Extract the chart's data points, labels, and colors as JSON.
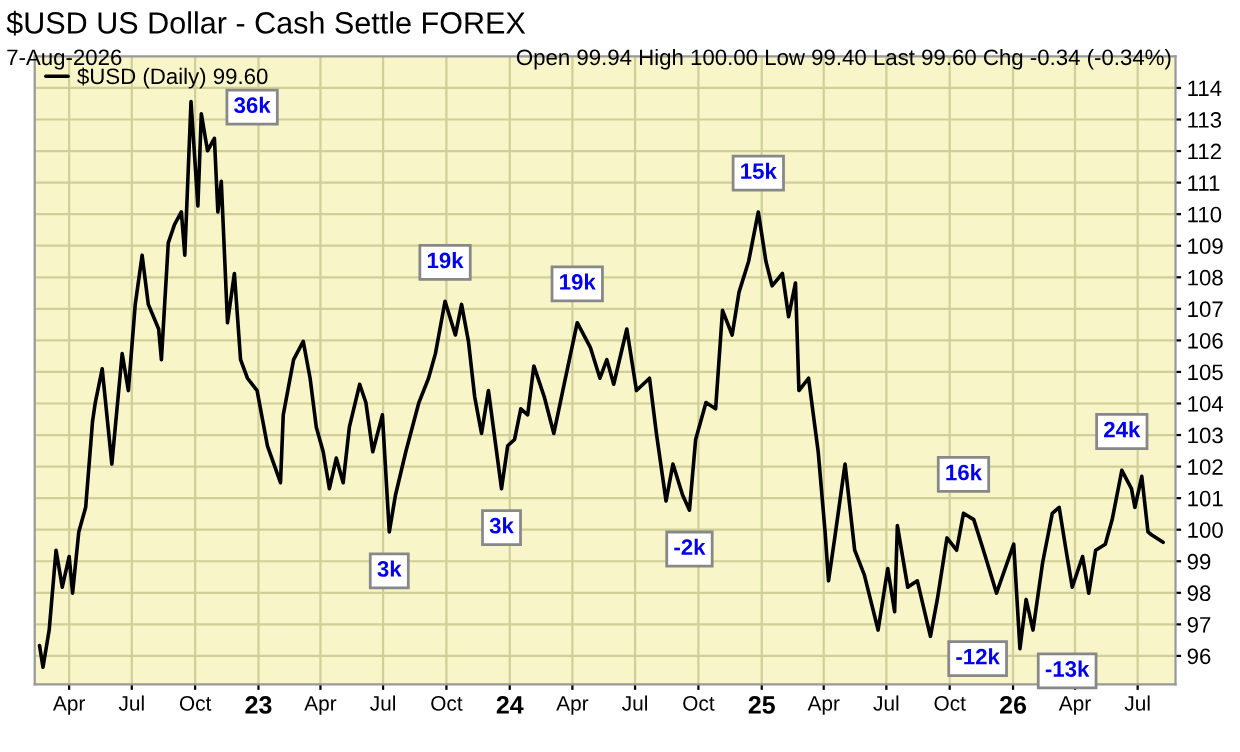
{
  "chart_data": {
    "type": "line",
    "title": "$USD US Dollar - Cash Settle FOREX",
    "subtitle": "7-Aug-2026",
    "annotations": [
      "Open 99.94 High 100.00 Low 99.40 Last 99.60 Chg -0.34 (-0.34%)",
      {
        "text": "36k",
        "x": "2022-09-25",
        "y": 113.57
      },
      {
        "text": "3k",
        "x": "2023-07-10",
        "y": 99.93
      },
      {
        "text": "19k",
        "x": "2023-09-29",
        "y": 107.24
      },
      {
        "text": "3k",
        "x": "2023-12-20",
        "y": 101.3
      },
      {
        "text": "19k",
        "x": "2024-04-08",
        "y": 106.56
      },
      {
        "text": "-2k",
        "x": "2024-09-18",
        "y": 100.62
      },
      {
        "text": "15k",
        "x": "2024-12-27",
        "y": 110.07
      },
      {
        "text": "-12k",
        "x": "2025-09-03",
        "y": 96.62
      },
      {
        "text": "16k",
        "x": "2025-10-21",
        "y": 100.52
      },
      {
        "text": "-13k",
        "x": "2026-01-11",
        "y": 96.23
      },
      {
        "text": "24k",
        "x": "2026-06-08",
        "y": 101.88
      }
    ],
    "x": [
      "2022-02-17",
      "2022-02-22",
      "2022-03-03",
      "2022-03-13",
      "2022-03-22",
      "2022-04-01",
      "2022-04-06",
      "2022-04-15",
      "2022-04-25",
      "2022-05-05",
      "2022-05-09",
      "2022-05-19",
      "2022-06-02",
      "2022-06-17",
      "2022-06-26",
      "2022-07-06",
      "2022-07-16",
      "2022-07-25",
      "2022-08-09",
      "2022-08-13",
      "2022-08-23",
      "2022-09-01",
      "2022-09-11",
      "2022-09-16",
      "2022-09-25",
      "2022-10-05",
      "2022-10-10",
      "2022-10-19",
      "2022-10-29",
      "2022-11-03",
      "2022-11-08",
      "2022-11-17",
      "2022-11-27",
      "2022-12-06",
      "2022-12-16",
      "2022-12-30",
      "2023-01-14",
      "2023-02-02",
      "2023-02-06",
      "2023-02-21",
      "2023-03-07",
      "2023-03-17",
      "2023-03-26",
      "2023-04-05",
      "2023-04-14",
      "2023-04-24",
      "2023-05-04",
      "2023-05-13",
      "2023-05-28",
      "2023-06-06",
      "2023-06-16",
      "2023-06-30",
      "2023-07-10",
      "2023-07-19",
      "2023-08-03",
      "2023-08-22",
      "2023-09-05",
      "2023-09-15",
      "2023-09-29",
      "2023-10-14",
      "2023-10-23",
      "2023-11-02",
      "2023-11-11",
      "2023-11-21",
      "2023-12-01",
      "2023-12-20",
      "2023-12-29",
      "2024-01-08",
      "2024-01-17",
      "2024-01-27",
      "2024-02-05",
      "2024-02-20",
      "2024-03-05",
      "2024-03-20",
      "2024-04-08",
      "2024-04-27",
      "2024-05-11",
      "2024-05-21",
      "2024-05-31",
      "2024-06-19",
      "2024-07-03",
      "2024-07-22",
      "2024-08-01",
      "2024-08-15",
      "2024-08-25",
      "2024-09-08",
      "2024-09-18",
      "2024-09-27",
      "2024-10-12",
      "2024-10-26",
      "2024-11-05",
      "2024-11-19",
      "2024-11-29",
      "2024-12-13",
      "2024-12-27",
      "2025-01-07",
      "2025-01-16",
      "2025-01-31",
      "2025-02-09",
      "2025-02-19",
      "2025-02-24",
      "2025-03-10",
      "2025-03-24",
      "2025-04-03",
      "2025-04-08",
      "2025-04-17",
      "2025-05-02",
      "2025-05-16",
      "2025-05-30",
      "2025-06-19",
      "2025-07-03",
      "2025-07-13",
      "2025-07-17",
      "2025-08-01",
      "2025-08-15",
      "2025-09-03",
      "2025-09-13",
      "2025-09-27",
      "2025-10-11",
      "2025-10-21",
      "2025-11-05",
      "2025-11-19",
      "2025-12-08",
      "2026-01-02",
      "2026-01-11",
      "2026-01-20",
      "2026-01-30",
      "2026-02-13",
      "2026-02-27",
      "2026-03-09",
      "2026-03-19",
      "2026-03-28",
      "2026-04-12",
      "2026-04-21",
      "2026-05-01",
      "2026-05-15",
      "2026-05-25",
      "2026-06-08",
      "2026-06-22",
      "2026-06-27",
      "2026-07-07",
      "2026-07-16",
      "2026-07-21",
      "2026-08-07"
    ],
    "series": [
      {
        "name": "$USD (Daily) 99.60",
        "color": "#000000",
        "values": [
          96.33,
          95.64,
          96.82,
          99.35,
          98.18,
          99.15,
          97.99,
          99.93,
          100.71,
          103.44,
          104.03,
          105.1,
          102.08,
          105.58,
          104.41,
          107.14,
          108.7,
          107.14,
          106.36,
          105.39,
          109.09,
          109.67,
          110.07,
          108.7,
          113.57,
          110.26,
          113.18,
          112.01,
          112.4,
          110.07,
          111.04,
          106.56,
          108.12,
          105.39,
          104.8,
          104.41,
          102.66,
          101.49,
          103.64,
          105.39,
          105.97,
          104.8,
          103.25,
          102.47,
          101.3,
          102.27,
          101.49,
          103.25,
          104.61,
          104.03,
          102.47,
          103.64,
          99.93,
          101.1,
          102.47,
          104.03,
          104.8,
          105.58,
          107.24,
          106.17,
          107.14,
          105.97,
          104.22,
          103.05,
          104.41,
          101.3,
          102.66,
          102.86,
          103.83,
          103.64,
          105.19,
          104.22,
          103.05,
          104.61,
          106.56,
          105.78,
          104.8,
          105.39,
          104.61,
          106.36,
          104.41,
          104.8,
          103.05,
          100.91,
          102.08,
          101.1,
          100.62,
          102.86,
          104.03,
          103.83,
          106.95,
          106.17,
          107.53,
          108.51,
          110.07,
          108.51,
          107.73,
          108.12,
          106.75,
          107.82,
          104.41,
          104.8,
          102.47,
          99.93,
          98.38,
          99.74,
          102.08,
          99.35,
          98.57,
          96.82,
          98.77,
          97.4,
          100.13,
          98.18,
          98.38,
          96.62,
          97.79,
          99.74,
          99.35,
          100.52,
          100.32,
          99.35,
          97.99,
          99.54,
          96.23,
          97.79,
          96.82,
          98.96,
          100.52,
          100.71,
          99.35,
          98.18,
          99.15,
          97.99,
          99.35,
          99.54,
          100.32,
          101.88,
          101.3,
          100.71,
          101.69,
          99.93,
          99.84,
          99.6
        ]
      }
    ],
    "xlim": [
      "2022-02-10",
      "2026-08-25"
    ],
    "xticks": [
      {
        "value": "2022-04-01",
        "label": "Apr"
      },
      {
        "value": "2022-07-01",
        "label": "Jul"
      },
      {
        "value": "2022-10-01",
        "label": "Oct"
      },
      {
        "value": "2023-01-01",
        "label": "23"
      },
      {
        "value": "2023-04-01",
        "label": "Apr"
      },
      {
        "value": "2023-07-01",
        "label": "Jul"
      },
      {
        "value": "2023-10-01",
        "label": "Oct"
      },
      {
        "value": "2024-01-01",
        "label": "24"
      },
      {
        "value": "2024-04-01",
        "label": "Apr"
      },
      {
        "value": "2024-07-01",
        "label": "Jul"
      },
      {
        "value": "2024-10-01",
        "label": "Oct"
      },
      {
        "value": "2025-01-01",
        "label": "25"
      },
      {
        "value": "2025-04-01",
        "label": "Apr"
      },
      {
        "value": "2025-07-01",
        "label": "Jul"
      },
      {
        "value": "2025-10-01",
        "label": "Oct"
      },
      {
        "value": "2026-01-01",
        "label": "26"
      },
      {
        "value": "2026-04-01",
        "label": "Apr"
      },
      {
        "value": "2026-07-01",
        "label": "Jul"
      }
    ],
    "ylim": [
      95.1,
      115.0
    ],
    "yticks": [
      96,
      97,
      98,
      99,
      100,
      101,
      102,
      103,
      104,
      105,
      106,
      107,
      108,
      109,
      110,
      111,
      112,
      113,
      114
    ],
    "grid": true,
    "legend": "top left",
    "line_style": "solid",
    "marker": "none"
  }
}
